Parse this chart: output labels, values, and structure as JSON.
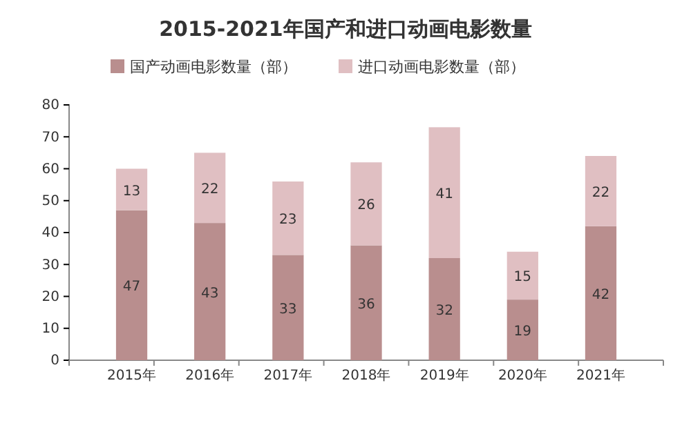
{
  "chart_data": {
    "type": "bar",
    "title": "2015-2021年国产和进口动画电影数量",
    "categories": [
      "2015年",
      "2016年",
      "2017年",
      "2018年",
      "2019年",
      "2020年",
      "2021年"
    ],
    "stacked": true,
    "series": [
      {
        "name": "国产动画电影数量（部）",
        "color": "#b98e8e",
        "values": [
          47,
          43,
          33,
          36,
          32,
          19,
          42
        ]
      },
      {
        "name": "进口动画电影数量（部）",
        "color": "#e0bfc2",
        "values": [
          13,
          22,
          23,
          26,
          41,
          15,
          22
        ]
      }
    ],
    "data_labels": true,
    "ylim": [
      0,
      80
    ],
    "yticks": [
      0,
      10,
      20,
      30,
      40,
      50,
      60,
      70,
      80
    ],
    "grid": false,
    "legend": "top"
  }
}
